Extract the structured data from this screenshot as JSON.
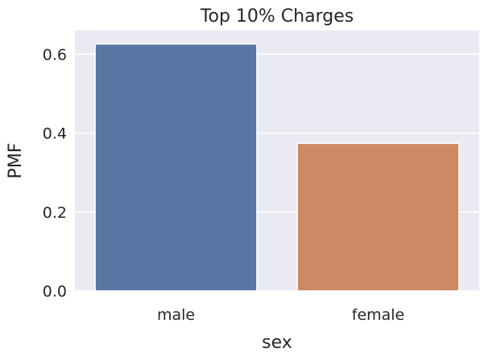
{
  "chart_data": {
    "type": "bar",
    "title": "Top 10% Charges",
    "xlabel": "sex",
    "ylabel": "PMF",
    "categories": [
      "male",
      "female"
    ],
    "values": [
      0.626,
      0.374
    ],
    "colors": [
      "#5875a4",
      "#cc8963"
    ],
    "ylim": [
      0,
      0.66
    ],
    "yticks": [
      0.0,
      0.2,
      0.4,
      0.6
    ],
    "ytick_labels": [
      "0.0",
      "0.2",
      "0.4",
      "0.6"
    ],
    "grid": true,
    "background_color": "#eaeaf2",
    "grid_color": "#ffffff"
  }
}
